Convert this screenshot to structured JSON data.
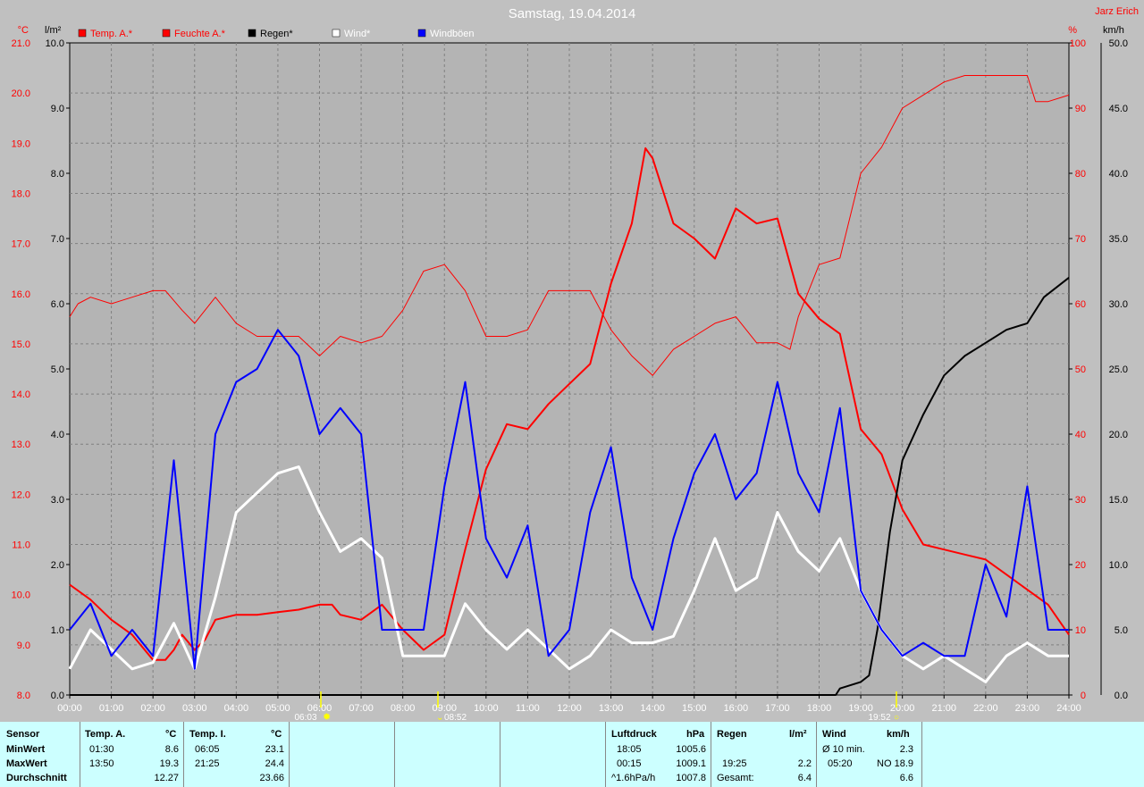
{
  "title": "Samstag, 19.04.2014",
  "author": "Jarz Erich",
  "axes": {
    "left_temp_unit": "°C",
    "left_rain_unit": "l/m²",
    "right_hum_unit": "%",
    "right_wind_unit": "km/h",
    "temp_ticks": [
      "21.0",
      "20.0",
      "19.0",
      "18.0",
      "17.0",
      "16.0",
      "15.0",
      "14.0",
      "13.0",
      "12.0",
      "11.0",
      "10.0",
      "9.0",
      "8.0"
    ],
    "rain_ticks": [
      "10.0",
      "9.0",
      "8.0",
      "7.0",
      "6.0",
      "5.0",
      "4.0",
      "3.0",
      "2.0",
      "1.0",
      "0.0"
    ],
    "hum_ticks": [
      "100",
      "90",
      "80",
      "70",
      "60",
      "50",
      "40",
      "30",
      "20",
      "10",
      "0"
    ],
    "wind_ticks": [
      "50.0",
      "45.0",
      "40.0",
      "35.0",
      "30.0",
      "25.0",
      "20.0",
      "15.0",
      "10.0",
      "5.0",
      "0.0"
    ],
    "x_ticks": [
      "00:00",
      "01:00",
      "02:00",
      "03:00",
      "04:00",
      "05:00",
      "06:00",
      "07:00",
      "08:00",
      "09:00",
      "10:00",
      "11:00",
      "12:00",
      "13:00",
      "14:00",
      "15:00",
      "16:00",
      "17:00",
      "18:00",
      "19:00",
      "20:00",
      "21:00",
      "22:00",
      "23:00",
      "24:00"
    ]
  },
  "markers": {
    "sunrise": "06:03",
    "moon1": "08:52",
    "sunset": "19:52"
  },
  "legend": [
    {
      "label": "Temp. A.*",
      "color": "#ff0000",
      "text_color": "#ff0000"
    },
    {
      "label": "Feuchte A.*",
      "color": "#ff0000",
      "text_color": "#ff0000"
    },
    {
      "label": "Regen*",
      "color": "#000000",
      "text_color": "#000000"
    },
    {
      "label": "Wind*",
      "color": "#ffffff",
      "text_color": "#ffffff"
    },
    {
      "label": "Windböen",
      "color": "#0000ff",
      "text_color": "#ffffff"
    }
  ],
  "table": {
    "sensor": {
      "header": "Sensor",
      "rows": [
        "MinWert",
        "MaxWert",
        "Durchschnitt"
      ]
    },
    "temp_a": {
      "header": "Temp. A.",
      "unit": "°C",
      "times": [
        "01:30",
        "13:50",
        ""
      ],
      "values": [
        "8.6",
        "19.3",
        "12.27"
      ]
    },
    "temp_i": {
      "header": "Temp. I.",
      "unit": "°C",
      "times": [
        "06:05",
        "21:25",
        ""
      ],
      "values": [
        "23.1",
        "24.4",
        "23.66"
      ]
    },
    "pressure": {
      "header": "Luftdruck",
      "unit": "hPa",
      "times": [
        "18:05",
        "00:15",
        "^1.6hPa/h"
      ],
      "values": [
        "1005.6",
        "1009.1",
        "1007.8"
      ]
    },
    "rain": {
      "header": "Regen",
      "unit": "l/m²",
      "times": [
        "",
        "19:25",
        "Gesamt:"
      ],
      "values": [
        "",
        "2.2",
        "6.4"
      ]
    },
    "wind": {
      "header": "Wind",
      "unit": "km/h",
      "times": [
        "Ø 10 min.",
        "05:20",
        ""
      ],
      "values": [
        "2.3",
        "NO 18.9",
        "6.6"
      ]
    }
  },
  "chart_data": {
    "type": "line",
    "title": "Samstag, 19.04.2014",
    "x_unit": "hour of day",
    "xlim": [
      0,
      24
    ],
    "series": [
      {
        "name": "Temp. A.*",
        "axis": "°C",
        "ylim": [
          8,
          21
        ],
        "color": "#ff0000",
        "width": 2,
        "points": [
          [
            0,
            10.2
          ],
          [
            0.5,
            9.9
          ],
          [
            1,
            9.5
          ],
          [
            1.5,
            9.2
          ],
          [
            2,
            8.7
          ],
          [
            2.3,
            8.7
          ],
          [
            2.5,
            8.9
          ],
          [
            2.7,
            9.2
          ],
          [
            3,
            8.9
          ],
          [
            3.25,
            9.1
          ],
          [
            3.5,
            9.5
          ],
          [
            4,
            9.6
          ],
          [
            4.5,
            9.6
          ],
          [
            5,
            9.65
          ],
          [
            5.5,
            9.7
          ],
          [
            6,
            9.8
          ],
          [
            6.3,
            9.8
          ],
          [
            6.5,
            9.6
          ],
          [
            7,
            9.5
          ],
          [
            7.5,
            9.8
          ],
          [
            8,
            9.3
          ],
          [
            8.5,
            8.9
          ],
          [
            9,
            9.2
          ],
          [
            9.5,
            10.9
          ],
          [
            10,
            12.5
          ],
          [
            10.5,
            13.4
          ],
          [
            11,
            13.3
          ],
          [
            11.5,
            13.8
          ],
          [
            12,
            14.2
          ],
          [
            12.5,
            14.6
          ],
          [
            13,
            16.2
          ],
          [
            13.5,
            17.4
          ],
          [
            13.83,
            18.9
          ],
          [
            14,
            18.7
          ],
          [
            14.5,
            17.4
          ],
          [
            15,
            17.1
          ],
          [
            15.5,
            16.7
          ],
          [
            16,
            17.7
          ],
          [
            16.5,
            17.4
          ],
          [
            17,
            17.5
          ],
          [
            17.5,
            16.0
          ],
          [
            18,
            15.5
          ],
          [
            18.5,
            15.2
          ],
          [
            19,
            13.3
          ],
          [
            19.5,
            12.8
          ],
          [
            20,
            11.7
          ],
          [
            20.5,
            11.0
          ],
          [
            21,
            10.9
          ],
          [
            21.5,
            10.8
          ],
          [
            22,
            10.7
          ],
          [
            22.5,
            10.4
          ],
          [
            23,
            10.1
          ],
          [
            23.5,
            9.8
          ],
          [
            24,
            9.2
          ]
        ]
      },
      {
        "name": "Feuchte A.*",
        "axis": "%",
        "ylim": [
          0,
          100
        ],
        "color": "#ff0000",
        "width": 1,
        "points": [
          [
            0,
            58
          ],
          [
            0.2,
            60
          ],
          [
            0.5,
            61
          ],
          [
            1,
            60
          ],
          [
            1.5,
            61
          ],
          [
            2,
            62
          ],
          [
            2.3,
            62
          ],
          [
            2.7,
            59
          ],
          [
            3,
            57
          ],
          [
            3.5,
            61
          ],
          [
            4,
            57
          ],
          [
            4.5,
            55
          ],
          [
            5,
            55
          ],
          [
            5.5,
            55
          ],
          [
            6,
            52
          ],
          [
            6.5,
            55
          ],
          [
            7,
            54
          ],
          [
            7.5,
            55
          ],
          [
            8,
            59
          ],
          [
            8.5,
            65
          ],
          [
            9,
            66
          ],
          [
            9.5,
            62
          ],
          [
            10,
            55
          ],
          [
            10.5,
            55
          ],
          [
            11,
            56
          ],
          [
            11.5,
            62
          ],
          [
            12,
            62
          ],
          [
            12.5,
            62
          ],
          [
            13,
            56
          ],
          [
            13.5,
            52
          ],
          [
            14,
            49
          ],
          [
            14.5,
            53
          ],
          [
            15,
            55
          ],
          [
            15.5,
            57
          ],
          [
            16,
            58
          ],
          [
            16.5,
            54
          ],
          [
            17,
            54
          ],
          [
            17.3,
            53
          ],
          [
            17.5,
            58
          ],
          [
            18,
            66
          ],
          [
            18.5,
            67
          ],
          [
            19,
            80
          ],
          [
            19.5,
            84
          ],
          [
            20,
            90
          ],
          [
            20.5,
            92
          ],
          [
            21,
            94
          ],
          [
            21.5,
            95
          ],
          [
            22,
            95
          ],
          [
            22.5,
            95
          ],
          [
            23,
            95
          ],
          [
            23.2,
            91
          ],
          [
            23.5,
            91
          ],
          [
            24,
            92
          ]
        ]
      },
      {
        "name": "Regen*",
        "axis": "l/m²",
        "ylim": [
          0,
          10
        ],
        "color": "#000000",
        "width": 2,
        "points": [
          [
            0,
            0
          ],
          [
            18.4,
            0
          ],
          [
            18.5,
            0.1
          ],
          [
            19,
            0.2
          ],
          [
            19.2,
            0.3
          ],
          [
            19.4,
            1.0
          ],
          [
            19.7,
            2.5
          ],
          [
            20,
            3.6
          ],
          [
            20.5,
            4.3
          ],
          [
            21,
            4.9
          ],
          [
            21.5,
            5.2
          ],
          [
            22,
            5.4
          ],
          [
            22.5,
            5.6
          ],
          [
            23,
            5.7
          ],
          [
            23.4,
            6.1
          ],
          [
            23.8,
            6.3
          ],
          [
            24,
            6.4
          ]
        ]
      },
      {
        "name": "Wind*",
        "axis": "km/h",
        "ylim": [
          0,
          50
        ],
        "color": "#ffffff",
        "width": 3,
        "points": [
          [
            0,
            2
          ],
          [
            0.5,
            5
          ],
          [
            1,
            3.5
          ],
          [
            1.5,
            2
          ],
          [
            2,
            2.5
          ],
          [
            2.5,
            5.5
          ],
          [
            3,
            2
          ],
          [
            3.5,
            7.5
          ],
          [
            4,
            14
          ],
          [
            4.5,
            15.5
          ],
          [
            5,
            17
          ],
          [
            5.5,
            17.5
          ],
          [
            6,
            14
          ],
          [
            6.5,
            11
          ],
          [
            7,
            12
          ],
          [
            7.5,
            10.5
          ],
          [
            8,
            3
          ],
          [
            8.5,
            3
          ],
          [
            9,
            3
          ],
          [
            9.5,
            7
          ],
          [
            10,
            5
          ],
          [
            10.5,
            3.5
          ],
          [
            11,
            5
          ],
          [
            11.5,
            3.5
          ],
          [
            12,
            2
          ],
          [
            12.5,
            3
          ],
          [
            13,
            5
          ],
          [
            13.5,
            4
          ],
          [
            14,
            4
          ],
          [
            14.5,
            4.5
          ],
          [
            15,
            8
          ],
          [
            15.5,
            12
          ],
          [
            16,
            8
          ],
          [
            16.5,
            9
          ],
          [
            17,
            14
          ],
          [
            17.5,
            11
          ],
          [
            18,
            9.5
          ],
          [
            18.5,
            12
          ],
          [
            19,
            8
          ],
          [
            19.5,
            5
          ],
          [
            20,
            3
          ],
          [
            20.5,
            2
          ],
          [
            21,
            3
          ],
          [
            21.5,
            2
          ],
          [
            22,
            1
          ],
          [
            22.5,
            3
          ],
          [
            23,
            4
          ],
          [
            23.5,
            3
          ],
          [
            24,
            3
          ]
        ]
      },
      {
        "name": "Windböen",
        "axis": "km/h",
        "ylim": [
          0,
          50
        ],
        "color": "#0000ff",
        "width": 2,
        "points": [
          [
            0,
            5
          ],
          [
            0.5,
            7
          ],
          [
            1,
            3
          ],
          [
            1.5,
            5
          ],
          [
            2,
            3
          ],
          [
            2.5,
            18
          ],
          [
            3,
            2
          ],
          [
            3.5,
            20
          ],
          [
            4,
            24
          ],
          [
            4.5,
            25
          ],
          [
            5,
            28
          ],
          [
            5.5,
            26
          ],
          [
            6,
            20
          ],
          [
            6.5,
            22
          ],
          [
            7,
            20
          ],
          [
            7.5,
            5
          ],
          [
            8,
            5
          ],
          [
            8.5,
            5
          ],
          [
            9,
            16
          ],
          [
            9.5,
            24
          ],
          [
            10,
            12
          ],
          [
            10.5,
            9
          ],
          [
            11,
            13
          ],
          [
            11.5,
            3
          ],
          [
            12,
            5
          ],
          [
            12.5,
            14
          ],
          [
            13,
            19
          ],
          [
            13.5,
            9
          ],
          [
            14,
            5
          ],
          [
            14.5,
            12
          ],
          [
            15,
            17
          ],
          [
            15.5,
            20
          ],
          [
            16,
            15
          ],
          [
            16.5,
            17
          ],
          [
            17,
            24
          ],
          [
            17.5,
            17
          ],
          [
            18,
            14
          ],
          [
            18.5,
            22
          ],
          [
            19,
            8
          ],
          [
            19.5,
            5
          ],
          [
            20,
            3
          ],
          [
            20.5,
            4
          ],
          [
            21,
            3
          ],
          [
            21.5,
            3
          ],
          [
            22,
            10
          ],
          [
            22.5,
            6
          ],
          [
            23,
            16
          ],
          [
            23.5,
            5
          ],
          [
            24,
            5
          ]
        ]
      }
    ]
  }
}
